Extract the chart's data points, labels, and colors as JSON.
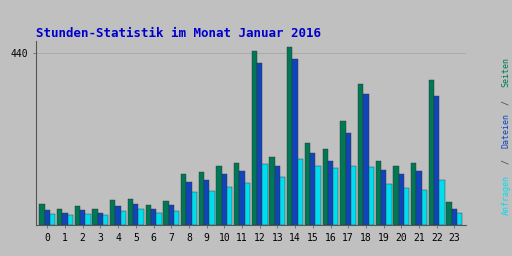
{
  "title": "Stunden-Statistik im Monat Januar 2016",
  "title_color": "#0000CC",
  "title_fontsize": 9,
  "hours": [
    0,
    1,
    2,
    3,
    4,
    5,
    6,
    7,
    8,
    9,
    10,
    11,
    12,
    13,
    14,
    15,
    16,
    17,
    18,
    19,
    20,
    21,
    22,
    23
  ],
  "seiten": [
    55,
    42,
    50,
    42,
    65,
    68,
    52,
    62,
    130,
    135,
    150,
    160,
    445,
    175,
    455,
    210,
    195,
    265,
    360,
    165,
    150,
    160,
    370,
    60
  ],
  "dateien": [
    38,
    32,
    38,
    32,
    50,
    55,
    42,
    52,
    110,
    115,
    130,
    138,
    415,
    152,
    425,
    185,
    165,
    235,
    335,
    140,
    130,
    138,
    330,
    42
  ],
  "anfragen": [
    28,
    26,
    28,
    26,
    36,
    42,
    32,
    36,
    85,
    88,
    98,
    108,
    155,
    122,
    168,
    152,
    145,
    150,
    148,
    105,
    95,
    90,
    115,
    32
  ],
  "color_seiten": "#007755",
  "color_dateien": "#1144BB",
  "color_anfragen": "#00DDEE",
  "ytick_val": 440,
  "ylim": [
    0,
    470
  ],
  "bg_color": "#C0C0C0",
  "plot_bg_color": "#C0C0C0",
  "grid_color": "#AAAAAA",
  "bar_width": 0.3,
  "font_family": "monospace",
  "tick_fontsize": 7
}
